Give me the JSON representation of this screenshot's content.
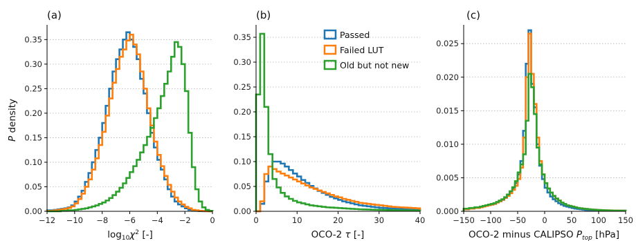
{
  "figure": {
    "shared_ylabel_prefix": "P",
    "shared_ylabel_suffix": " density"
  },
  "legend": {
    "entries": [
      {
        "name": "Passed",
        "color": "#1f77b4"
      },
      {
        "name": "Failed LUT",
        "color": "#ff7f0e"
      },
      {
        "name": "Old but not new",
        "color": "#2ca02c"
      }
    ],
    "placement": "upper-right of panel (b)"
  },
  "chart_data": [
    {
      "panel": "(a)",
      "type": "histogram-step",
      "xlabel_text": "log",
      "xlabel_sub": "10",
      "xlabel_mid": "χ",
      "xlabel_sup": "2",
      "xlabel_tail": " [-]",
      "xlim": [
        -12,
        0
      ],
      "ylim": [
        0,
        0.38
      ],
      "xticks": [
        -12,
        -10,
        -8,
        -6,
        -4,
        -2,
        0
      ],
      "xtick_labels": [
        "−12",
        "−10",
        "−8",
        "−6",
        "−4",
        "−2",
        "0"
      ],
      "yticks": [
        0.0,
        0.05,
        0.1,
        0.15,
        0.2,
        0.25,
        0.3,
        0.35
      ],
      "ytick_labels": [
        "0.00",
        "0.05",
        "0.10",
        "0.15",
        "0.20",
        "0.25",
        "0.30",
        "0.35"
      ],
      "grid": "horizontal dotted",
      "bin_start": -12,
      "bin_width": 0.25,
      "series": [
        {
          "name": "Passed",
          "color": "#1f77b4",
          "values": [
            0.002,
            0.002,
            0.003,
            0.004,
            0.005,
            0.006,
            0.008,
            0.012,
            0.02,
            0.03,
            0.042,
            0.06,
            0.078,
            0.1,
            0.125,
            0.15,
            0.18,
            0.215,
            0.25,
            0.285,
            0.31,
            0.33,
            0.35,
            0.365,
            0.35,
            0.335,
            0.31,
            0.27,
            0.24,
            0.2,
            0.16,
            0.13,
            0.105,
            0.085,
            0.065,
            0.045,
            0.03,
            0.02,
            0.014,
            0.01,
            0.006,
            0.003,
            0.002,
            0.001,
            0.0005,
            0.0003,
            0.0002,
            0.0001
          ]
        },
        {
          "name": "Failed LUT",
          "color": "#ff7f0e",
          "values": [
            0.001,
            0.001,
            0.002,
            0.003,
            0.004,
            0.005,
            0.007,
            0.01,
            0.016,
            0.025,
            0.036,
            0.05,
            0.065,
            0.085,
            0.108,
            0.135,
            0.162,
            0.195,
            0.23,
            0.262,
            0.29,
            0.315,
            0.33,
            0.348,
            0.36,
            0.34,
            0.32,
            0.285,
            0.25,
            0.21,
            0.175,
            0.142,
            0.115,
            0.092,
            0.072,
            0.054,
            0.04,
            0.028,
            0.02,
            0.014,
            0.009,
            0.006,
            0.003,
            0.002,
            0.001,
            0.0006,
            0.0003,
            0.0001
          ]
        },
        {
          "name": "Old but not new",
          "color": "#2ca02c",
          "values": [
            0.0,
            0.0,
            0.0,
            0.0,
            0.001,
            0.001,
            0.002,
            0.002,
            0.003,
            0.004,
            0.005,
            0.006,
            0.008,
            0.01,
            0.012,
            0.015,
            0.018,
            0.022,
            0.027,
            0.033,
            0.04,
            0.048,
            0.057,
            0.068,
            0.08,
            0.092,
            0.105,
            0.12,
            0.135,
            0.152,
            0.17,
            0.19,
            0.21,
            0.235,
            0.26,
            0.285,
            0.315,
            0.345,
            0.335,
            0.3,
            0.245,
            0.16,
            0.09,
            0.045,
            0.02,
            0.008,
            0.003,
            0.001
          ]
        }
      ]
    },
    {
      "panel": "(b)",
      "type": "histogram-step",
      "xlabel_text": "OCO-2 ",
      "xlabel_mid": "τ",
      "xlabel_tail": " [-]",
      "xlim": [
        0,
        40
      ],
      "ylim": [
        0,
        0.375
      ],
      "xticks": [
        0,
        10,
        20,
        30,
        40
      ],
      "xtick_labels": [
        "0",
        "10",
        "20",
        "30",
        "40"
      ],
      "yticks": [
        0.0,
        0.05,
        0.1,
        0.15,
        0.2,
        0.25,
        0.3,
        0.35
      ],
      "ytick_labels": [
        "0.00",
        "0.05",
        "0.10",
        "0.15",
        "0.20",
        "0.25",
        "0.30",
        "0.35"
      ],
      "grid": "horizontal dotted",
      "bin_start": 0,
      "bin_width": 1,
      "series": [
        {
          "name": "Passed",
          "color": "#1f77b4",
          "values": [
            0.0,
            0.015,
            0.06,
            0.09,
            0.1,
            0.1,
            0.096,
            0.09,
            0.083,
            0.076,
            0.07,
            0.063,
            0.057,
            0.051,
            0.046,
            0.041,
            0.037,
            0.033,
            0.029,
            0.026,
            0.023,
            0.02,
            0.018,
            0.016,
            0.014,
            0.012,
            0.011,
            0.01,
            0.009,
            0.008,
            0.007,
            0.0065,
            0.006,
            0.0055,
            0.005,
            0.0045,
            0.004,
            0.0035,
            0.003,
            0.003
          ]
        },
        {
          "name": "Failed LUT",
          "color": "#ff7f0e",
          "values": [
            0.0,
            0.02,
            0.075,
            0.09,
            0.085,
            0.08,
            0.076,
            0.072,
            0.068,
            0.064,
            0.06,
            0.056,
            0.052,
            0.048,
            0.045,
            0.042,
            0.039,
            0.036,
            0.033,
            0.03,
            0.028,
            0.025,
            0.023,
            0.021,
            0.019,
            0.017,
            0.016,
            0.015,
            0.014,
            0.013,
            0.012,
            0.011,
            0.01,
            0.009,
            0.0085,
            0.008,
            0.0075,
            0.007,
            0.0065,
            0.006
          ]
        },
        {
          "name": "Old but not new",
          "color": "#2ca02c",
          "values": [
            0.235,
            0.357,
            0.21,
            0.115,
            0.065,
            0.048,
            0.037,
            0.03,
            0.025,
            0.021,
            0.018,
            0.016,
            0.014,
            0.012,
            0.011,
            0.01,
            0.009,
            0.008,
            0.0075,
            0.007,
            0.0065,
            0.006,
            0.0055,
            0.005,
            0.0045,
            0.004,
            0.0038,
            0.0035,
            0.0032,
            0.003,
            0.0028,
            0.0026,
            0.0024,
            0.0022,
            0.002,
            0.0019,
            0.0018,
            0.0017,
            0.0016,
            0.0015
          ]
        }
      ]
    },
    {
      "panel": "(c)",
      "type": "histogram-step",
      "xlabel_text": "OCO-2 minus CALIPSO ",
      "xlabel_mid": "P",
      "xlabel_sub": "top",
      "xlabel_tail": " [hPa]",
      "xlim": [
        -150,
        150
      ],
      "ylim": [
        0,
        0.0278
      ],
      "xticks": [
        -150,
        -100,
        -50,
        0,
        50,
        100,
        150
      ],
      "xtick_labels": [
        "−150",
        "−100",
        "−50",
        "0",
        "50",
        "100",
        "150"
      ],
      "yticks": [
        0.0,
        0.005,
        0.01,
        0.015,
        0.02,
        0.025
      ],
      "ytick_labels": [
        "0.000",
        "0.005",
        "0.010",
        "0.015",
        "0.020",
        "0.025"
      ],
      "grid": "horizontal dotted",
      "bin_start": -150,
      "bin_width": 5,
      "series": [
        {
          "name": "Passed",
          "color": "#1f77b4",
          "values": [
            0.0003,
            0.0003,
            0.0004,
            0.0004,
            0.0005,
            0.0005,
            0.0006,
            0.0007,
            0.0008,
            0.0009,
            0.001,
            0.0011,
            0.0013,
            0.0015,
            0.0017,
            0.002,
            0.0023,
            0.0028,
            0.0034,
            0.0042,
            0.0055,
            0.0075,
            0.012,
            0.022,
            0.027,
            0.019,
            0.0155,
            0.01,
            0.0068,
            0.0048,
            0.0035,
            0.0028,
            0.0022,
            0.0018,
            0.0015,
            0.0012,
            0.001,
            0.0008,
            0.0007,
            0.0006,
            0.0005,
            0.0004,
            0.00035,
            0.0003,
            0.00025,
            0.0002,
            0.00018,
            0.00015,
            0.00013,
            0.0001,
            0.0001,
            0.0001,
            0.0001,
            0.0001,
            0.0001,
            0.0001,
            0.0001,
            0.0001,
            0.0001,
            0.0001
          ]
        },
        {
          "name": "Failed LUT",
          "color": "#ff7f0e",
          "values": [
            0.0003,
            0.0003,
            0.0004,
            0.0004,
            0.0005,
            0.0005,
            0.0006,
            0.0007,
            0.0008,
            0.0009,
            0.001,
            0.0011,
            0.0013,
            0.0015,
            0.0017,
            0.002,
            0.0023,
            0.0027,
            0.0032,
            0.0038,
            0.0048,
            0.0065,
            0.011,
            0.02,
            0.0265,
            0.0205,
            0.016,
            0.011,
            0.0075,
            0.0055,
            0.0042,
            0.0034,
            0.0028,
            0.0023,
            0.0019,
            0.0016,
            0.0013,
            0.0011,
            0.0009,
            0.0008,
            0.0007,
            0.0006,
            0.0005,
            0.00045,
            0.0004,
            0.00035,
            0.0003,
            0.00028,
            0.00025,
            0.00022,
            0.0002,
            0.00018,
            0.00016,
            0.00015,
            0.00013,
            0.00012,
            0.00011,
            0.0001,
            0.0001,
            0.0001
          ]
        },
        {
          "name": "Old but not new",
          "color": "#2ca02c",
          "values": [
            0.0004,
            0.0004,
            0.0005,
            0.0005,
            0.0006,
            0.0006,
            0.0007,
            0.0008,
            0.0009,
            0.001,
            0.0011,
            0.0012,
            0.0014,
            0.0016,
            0.0018,
            0.0021,
            0.0025,
            0.003,
            0.0036,
            0.0045,
            0.0058,
            0.007,
            0.0085,
            0.0135,
            0.0205,
            0.0185,
            0.0145,
            0.0095,
            0.007,
            0.0055,
            0.0042,
            0.0034,
            0.0028,
            0.0023,
            0.0019,
            0.0016,
            0.0013,
            0.0011,
            0.0009,
            0.0008,
            0.0007,
            0.0006,
            0.0005,
            0.00045,
            0.0004,
            0.00035,
            0.0003,
            0.00027,
            0.00024,
            0.00021,
            0.00019,
            0.00017,
            0.00015,
            0.00013,
            0.00012,
            0.00011,
            0.0001,
            0.0001,
            0.0001,
            0.0001
          ]
        }
      ]
    }
  ]
}
